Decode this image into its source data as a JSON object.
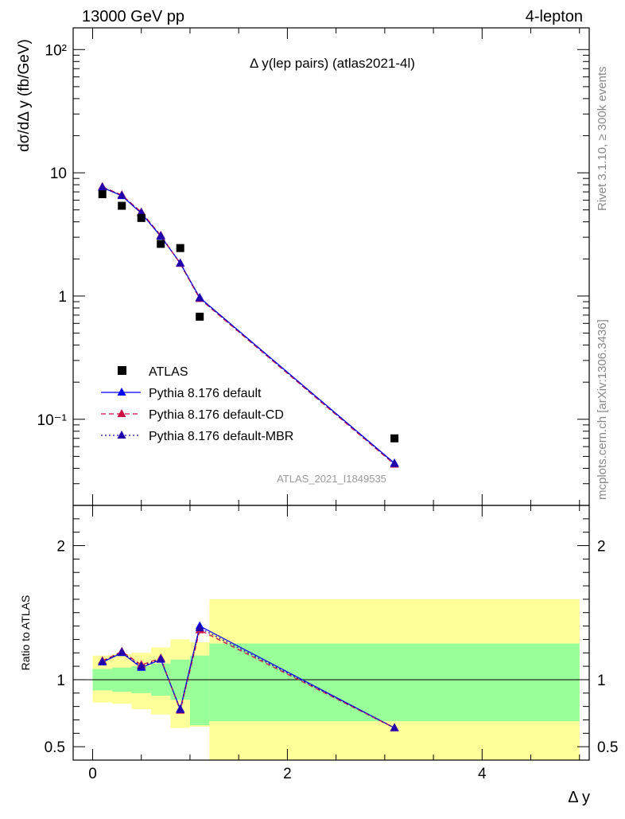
{
  "header": {
    "left": "13000 GeV pp",
    "right": "4-lepton"
  },
  "side": {
    "rivet": "Rivet 3.1.10, ≥ 300k events",
    "mcplots": "mcplots.cern.ch [arXiv:1306.3436]"
  },
  "chart_data": {
    "type": "line",
    "title": "Δ y(lep pairs) (atlas2021-4l)",
    "watermark": "ATLAS_2021_I1849535",
    "xlabel": "Δ y",
    "ylabel": "dσ/dΔ y (fb/GeV)",
    "ratio_ylabel": "Ratio to ATLAS",
    "xlim": [
      -0.2,
      5.1
    ],
    "ylim": [
      0.02,
      150
    ],
    "yscale": "log",
    "ratio_ylim": [
      0.4,
      2.3
    ],
    "xticks": [
      "0",
      "2",
      "4"
    ],
    "yticks": [
      "10⁻¹",
      "1",
      "10",
      "10²"
    ],
    "ratio_yticks": [
      "0.5",
      "1",
      "2"
    ],
    "data": {
      "name": "ATLAS",
      "x": [
        0.1,
        0.3,
        0.5,
        0.7,
        0.9,
        1.1,
        3.1
      ],
      "y": [
        6.7,
        5.4,
        4.3,
        2.65,
        2.45,
        0.68,
        0.07
      ]
    },
    "series": [
      {
        "name": "Pythia 8.176 default",
        "color": "#0000ee",
        "dash": "solid",
        "x": [
          0.1,
          0.3,
          0.5,
          0.7,
          0.9,
          1.1,
          3.1
        ],
        "y": [
          7.6,
          6.5,
          4.7,
          3.05,
          1.85,
          0.97,
          0.044
        ],
        "ratio": [
          1.13,
          1.2,
          1.09,
          1.15,
          0.78,
          1.4,
          0.64
        ]
      },
      {
        "name": "Pythia 8.176 default-CD",
        "color": "#cc1144",
        "dash": "dashed",
        "x": [
          0.1,
          0.3,
          0.5,
          0.7,
          0.9,
          1.1,
          3.1
        ],
        "y": [
          7.7,
          6.6,
          4.8,
          3.1,
          1.83,
          0.95,
          0.043
        ],
        "ratio": [
          1.14,
          1.21,
          1.11,
          1.16,
          0.77,
          1.37,
          0.64
        ]
      },
      {
        "name": "Pythia 8.176 default-MBR",
        "color": "#2200aa",
        "dash": "dotted",
        "x": [
          0.1,
          0.3,
          0.5,
          0.7,
          0.9,
          1.1,
          3.1
        ],
        "y": [
          7.65,
          6.55,
          4.75,
          3.08,
          1.84,
          0.96,
          0.0435
        ],
        "ratio": [
          1.135,
          1.205,
          1.1,
          1.155,
          0.775,
          1.385,
          0.64
        ]
      }
    ],
    "bands": {
      "edges": [
        0,
        0.2,
        0.4,
        0.6,
        0.8,
        1.0,
        1.2,
        5.0
      ],
      "green": [
        [
          0.92,
          1.08
        ],
        [
          0.91,
          1.09
        ],
        [
          0.9,
          1.1
        ],
        [
          0.88,
          1.12
        ],
        [
          0.85,
          1.15
        ],
        [
          0.66,
          1.18
        ],
        [
          0.69,
          1.27
        ]
      ],
      "yellow": [
        [
          0.83,
          1.18
        ],
        [
          0.82,
          1.19
        ],
        [
          0.78,
          1.2
        ],
        [
          0.74,
          1.24
        ],
        [
          0.64,
          1.3
        ],
        [
          0.65,
          1.28
        ],
        [
          0.4,
          1.6
        ]
      ]
    },
    "ratio_bands_upper_last_bins": [
      [
        1.0,
        1.2,
        1.62
      ],
      [
        1.2,
        5.0,
        1.6
      ]
    ],
    "legend_position": "lower-left"
  }
}
